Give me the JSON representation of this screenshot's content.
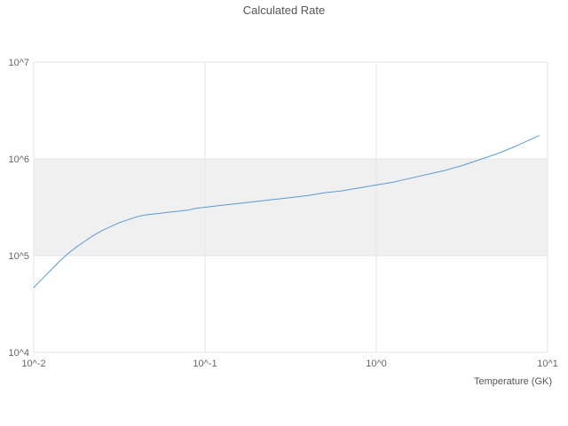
{
  "title": "Calculated Rate",
  "xlabel": "Temperature (GK)",
  "chart_data": {
    "type": "line",
    "xscale": "log",
    "yscale": "log",
    "title": "Calculated Rate",
    "xlabel": "Temperature (GK)",
    "ylabel": "",
    "xlim_log10": [
      -2,
      1
    ],
    "ylim_log10": [
      4,
      7
    ],
    "x_tick_labels": [
      "10^-2",
      "10^-1",
      "10^0",
      "10^1"
    ],
    "x_tick_log10": [
      -2,
      -1,
      0,
      1
    ],
    "y_tick_labels": [
      "10^4",
      "10^5",
      "10^6",
      "10^7"
    ],
    "y_tick_log10": [
      4,
      5,
      6,
      7
    ],
    "shaded_band_log10": [
      5,
      6
    ],
    "band_color": "#f0f0f0",
    "grid_color": "#e6e6e6",
    "line_color": "#5b9bd5",
    "legend": "off",
    "grid": "on",
    "series": [
      {
        "name": "Calculated Rate",
        "log10_points": [
          [
            -2.0,
            4.67
          ],
          [
            -1.95,
            4.76
          ],
          [
            -1.9,
            4.85
          ],
          [
            -1.85,
            4.94
          ],
          [
            -1.8,
            5.02
          ],
          [
            -1.75,
            5.09
          ],
          [
            -1.7,
            5.15
          ],
          [
            -1.65,
            5.21
          ],
          [
            -1.6,
            5.26
          ],
          [
            -1.55,
            5.3
          ],
          [
            -1.5,
            5.34
          ],
          [
            -1.45,
            5.37
          ],
          [
            -1.4,
            5.4
          ],
          [
            -1.35,
            5.42
          ],
          [
            -1.3,
            5.43
          ],
          [
            -1.25,
            5.44
          ],
          [
            -1.2,
            5.45
          ],
          [
            -1.15,
            5.46
          ],
          [
            -1.1,
            5.47
          ],
          [
            -1.05,
            5.49
          ],
          [
            -1.0,
            5.5
          ],
          [
            -0.9,
            5.52
          ],
          [
            -0.8,
            5.54
          ],
          [
            -0.7,
            5.56
          ],
          [
            -0.6,
            5.58
          ],
          [
            -0.5,
            5.6
          ],
          [
            -0.4,
            5.62
          ],
          [
            -0.3,
            5.65
          ],
          [
            -0.2,
            5.67
          ],
          [
            -0.1,
            5.7
          ],
          [
            0.0,
            5.73
          ],
          [
            0.1,
            5.76
          ],
          [
            0.2,
            5.8
          ],
          [
            0.3,
            5.84
          ],
          [
            0.4,
            5.88
          ],
          [
            0.5,
            5.93
          ],
          [
            0.6,
            5.99
          ],
          [
            0.7,
            6.05
          ],
          [
            0.8,
            6.12
          ],
          [
            0.9,
            6.2
          ],
          [
            0.95,
            6.24
          ]
        ]
      }
    ]
  }
}
